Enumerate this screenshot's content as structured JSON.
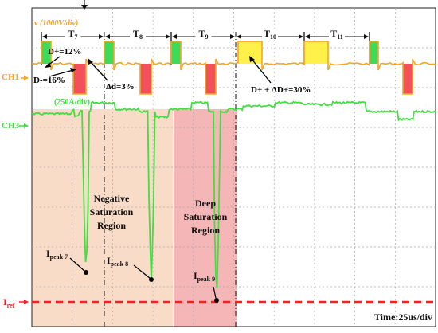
{
  "chart_data": {
    "type": "line",
    "series": [
      {
        "name": "CH1",
        "scale": "v (1000V/div)",
        "color": "#F5A623",
        "pulses": [
          {
            "period": "T7",
            "sign": "+",
            "duty": 0.12
          },
          {
            "period": "T7",
            "sign": "-",
            "duty": 0.16
          },
          {
            "period": "T8",
            "sign": "+",
            "duty": 0.12
          },
          {
            "period": "T8",
            "sign": "-",
            "duty": 0.13
          },
          {
            "period": "T9",
            "sign": "+",
            "duty": 0.12
          },
          {
            "period": "T9",
            "sign": "-",
            "duty": 0.13
          },
          {
            "period": "T10",
            "sign": "+",
            "duty": 0.3
          },
          {
            "period": "T11",
            "sign": "+",
            "duty": 0.3
          },
          {
            "period": "T11",
            "sign": "+",
            "duty": 0.12
          },
          {
            "period": "T11",
            "sign": "-",
            "duty": 0.12
          }
        ]
      },
      {
        "name": "CH3",
        "scale": "(250A/div)",
        "color": "#44DD44",
        "current_peaks": [
          {
            "label": "Ipeak 7",
            "depth_div": 4.9
          },
          {
            "label": "Ipeak 8",
            "depth_div": 5.1
          },
          {
            "label": "Ipeak 9",
            "depth_div": 5.5
          }
        ]
      }
    ],
    "periods": [
      "T7",
      "T8",
      "T9",
      "T10",
      "T11"
    ],
    "annotations": {
      "d_plus": "D+=12%",
      "d_minus": "D-=16%",
      "delta_d": "Δd=3%",
      "d_plus_delta": "D+ + ΔD+=30%",
      "iref": "Iref",
      "negative_region": [
        "Negative",
        "Saturation",
        "Region"
      ],
      "deep_region": [
        "Deep",
        "Saturation",
        "Region"
      ],
      "timebase": "Time:25us/div"
    },
    "channel_labels": {
      "ch1": "CH1",
      "ch3": "CH3"
    },
    "colors": {
      "negative_region": "#F8DCC8",
      "deep_region": "#F4B6B6",
      "iref": "#FF1E1E",
      "pos_pulse": "#3DDB5A",
      "neg_pulse": "#F2505A",
      "widened_pulse": "#FFF14A"
    },
    "grid": true
  }
}
